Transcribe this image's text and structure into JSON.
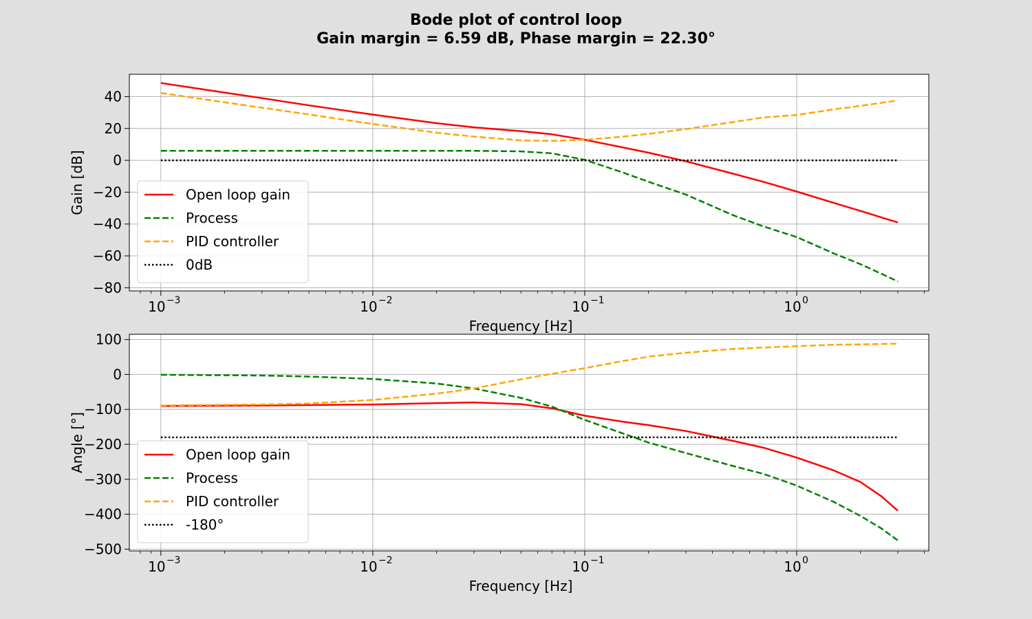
{
  "figure": {
    "title": "Bode plot of control loop",
    "subtitle": "Gain margin = 6.59 dB, Phase margin = 22.30°",
    "background": "#e0e0e0"
  },
  "chart_data": [
    {
      "type": "line",
      "panel": "gain",
      "xlabel": "Frequency [Hz]",
      "ylabel": "Gain [dB]",
      "xscale": "log",
      "xlim": [
        0.00071,
        4.2
      ],
      "ylim": [
        -82,
        54
      ],
      "xticks": [
        {
          "mant": "10",
          "exp": "−3"
        },
        {
          "mant": "10",
          "exp": "−2"
        },
        {
          "mant": "10",
          "exp": "−1"
        },
        {
          "mant": "10",
          "exp": "0"
        }
      ],
      "yticks": [
        "40",
        "20",
        "0",
        "−20",
        "−40",
        "−60",
        "−80"
      ],
      "grid": true,
      "legend_position": "lower-left",
      "series": [
        {
          "name": "Open loop gain",
          "color": "#ff0000",
          "style": "solid",
          "x": [
            0.001,
            0.002,
            0.003,
            0.005,
            0.01,
            0.02,
            0.03,
            0.05,
            0.07,
            0.1,
            0.15,
            0.2,
            0.3,
            0.5,
            0.7,
            1.0,
            1.5,
            2.0,
            3.0
          ],
          "y": [
            48.5,
            42.5,
            39.0,
            34.5,
            28.7,
            23.3,
            20.7,
            18.3,
            16.3,
            12.9,
            8.2,
            4.8,
            -0.6,
            -8.4,
            -13.6,
            -19.6,
            -26.8,
            -31.8,
            -39.0
          ]
        },
        {
          "name": "Process",
          "color": "#008000",
          "style": "dashed",
          "x": [
            0.001,
            0.002,
            0.005,
            0.01,
            0.02,
            0.03,
            0.05,
            0.07,
            0.1,
            0.15,
            0.2,
            0.3,
            0.5,
            0.7,
            1.0,
            1.5,
            2.0,
            3.0
          ],
          "y": [
            6.0,
            6.0,
            6.0,
            6.0,
            6.0,
            6.0,
            5.6,
            4.4,
            0.3,
            -7.5,
            -13.5,
            -21.5,
            -34.4,
            -41.6,
            -48.2,
            -58.5,
            -65.2,
            -76.0
          ]
        },
        {
          "name": "PID controller",
          "color": "#ffa500",
          "style": "dashed",
          "x": [
            0.001,
            0.002,
            0.003,
            0.005,
            0.01,
            0.02,
            0.03,
            0.05,
            0.07,
            0.1,
            0.15,
            0.2,
            0.3,
            0.5,
            0.7,
            1.0,
            1.5,
            2.0,
            3.0
          ],
          "y": [
            42.3,
            36.4,
            33.0,
            28.8,
            22.8,
            17.3,
            14.9,
            12.5,
            12.2,
            12.9,
            14.8,
            16.6,
            19.6,
            24.0,
            26.9,
            28.5,
            32.0,
            34.2,
            37.6
          ]
        },
        {
          "name": "0dB",
          "color": "#000000",
          "style": "dotted",
          "x": [
            0.001,
            3.0
          ],
          "y": [
            0,
            0
          ]
        }
      ]
    },
    {
      "type": "line",
      "panel": "phase",
      "xlabel": "Frequency [Hz]",
      "ylabel": "Angle [°]",
      "xscale": "log",
      "xlim": [
        0.00071,
        4.2
      ],
      "ylim": [
        -505,
        115
      ],
      "xticks": [
        {
          "mant": "10",
          "exp": "−3"
        },
        {
          "mant": "10",
          "exp": "−2"
        },
        {
          "mant": "10",
          "exp": "−1"
        },
        {
          "mant": "10",
          "exp": "0"
        }
      ],
      "yticks": [
        "100",
        "0",
        "−100",
        "−200",
        "−300",
        "−400",
        "−500"
      ],
      "grid": true,
      "legend_position": "lower-left",
      "series": [
        {
          "name": "Open loop gain",
          "color": "#ff0000",
          "style": "solid",
          "x": [
            0.001,
            0.003,
            0.01,
            0.02,
            0.03,
            0.05,
            0.07,
            0.1,
            0.15,
            0.2,
            0.3,
            0.5,
            0.7,
            1.0,
            1.5,
            2.0,
            2.5,
            3.0
          ],
          "y": [
            -90,
            -89,
            -86,
            -82,
            -80,
            -85,
            -97,
            -118,
            -135,
            -145,
            -162,
            -190,
            -210,
            -238,
            -275,
            -308,
            -348,
            -390
          ]
        },
        {
          "name": "Process",
          "color": "#008000",
          "style": "dashed",
          "x": [
            0.001,
            0.003,
            0.005,
            0.01,
            0.02,
            0.03,
            0.05,
            0.07,
            0.1,
            0.15,
            0.2,
            0.3,
            0.5,
            0.7,
            1.0,
            1.5,
            2.0,
            2.5,
            3.0
          ],
          "y": [
            -1,
            -3,
            -6,
            -13,
            -26,
            -40,
            -67,
            -92,
            -130,
            -168,
            -195,
            -225,
            -262,
            -285,
            -318,
            -365,
            -405,
            -440,
            -475
          ]
        },
        {
          "name": "PID controller",
          "color": "#ffa500",
          "style": "dashed",
          "x": [
            0.001,
            0.002,
            0.003,
            0.005,
            0.01,
            0.02,
            0.03,
            0.05,
            0.07,
            0.1,
            0.15,
            0.2,
            0.3,
            0.5,
            0.7,
            1.0,
            1.5,
            2.0,
            3.0
          ],
          "y": [
            -89,
            -87,
            -86,
            -83,
            -73,
            -55,
            -40,
            -14,
            2,
            18,
            38,
            51,
            62,
            73,
            77,
            81,
            85,
            86,
            88
          ]
        },
        {
          "name": "-180°",
          "color": "#000000",
          "style": "dotted",
          "x": [
            0.001,
            3.0
          ],
          "y": [
            -180,
            -180
          ]
        }
      ]
    }
  ]
}
